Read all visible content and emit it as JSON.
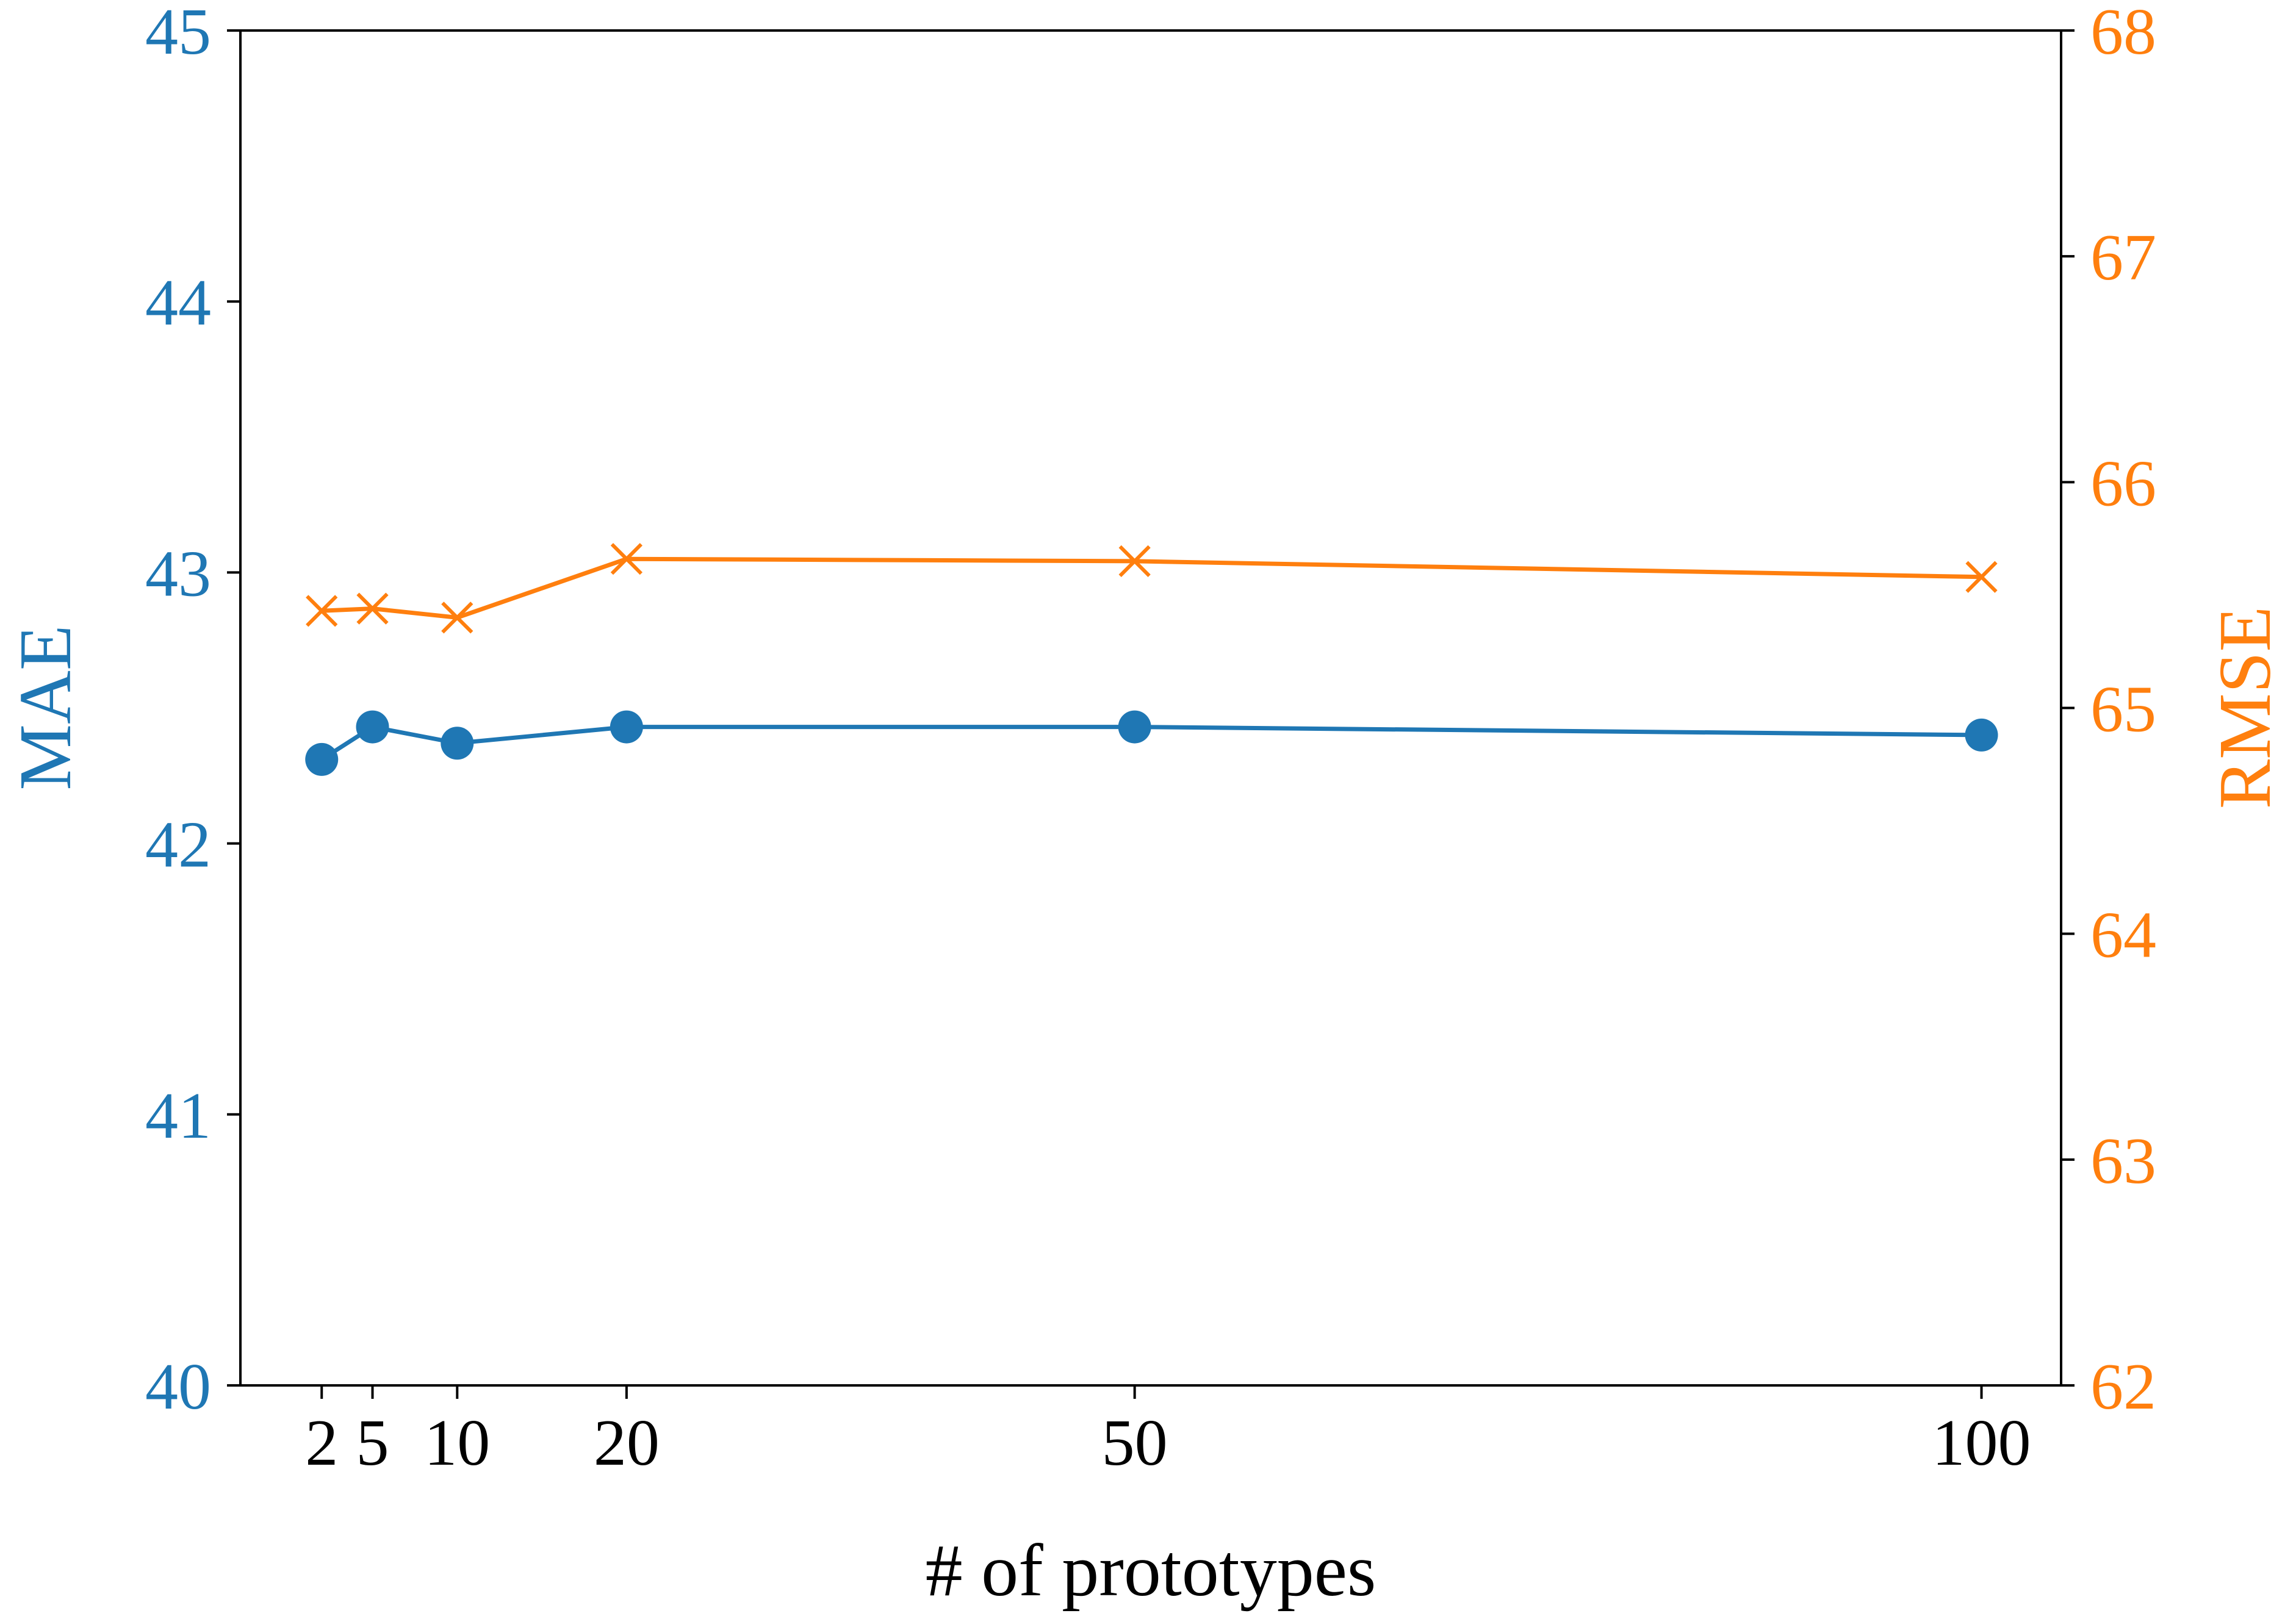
{
  "chart_data": {
    "type": "line",
    "title": "",
    "xlabel": "# of prototypes",
    "x": [
      2,
      5,
      10,
      20,
      50,
      100
    ],
    "xticks": [
      2,
      5,
      10,
      20,
      50,
      100
    ],
    "xtick_labels": [
      "2",
      "5",
      "10",
      "20",
      "50",
      "100"
    ],
    "xlim": [
      -2.8,
      104.7
    ],
    "series": [
      {
        "name": "MAE",
        "axis": "left",
        "marker": "circle",
        "color": "#1f77b4",
        "values": [
          42.31,
          42.43,
          42.37,
          42.43,
          42.43,
          42.4
        ]
      },
      {
        "name": "RMSE",
        "axis": "right",
        "marker": "x",
        "color": "#ff7f0e",
        "values": [
          65.43,
          65.44,
          65.4,
          65.66,
          65.65,
          65.58
        ]
      }
    ],
    "left_axis": {
      "label": "MAE",
      "ylim": [
        40,
        45
      ],
      "ticks": [
        40,
        41,
        42,
        43,
        44,
        45
      ],
      "tick_labels": [
        "40",
        "41",
        "42",
        "43",
        "44",
        "45"
      ],
      "color": "#1f77b4"
    },
    "right_axis": {
      "label": "RMSE",
      "ylim": [
        62,
        68
      ],
      "ticks": [
        62,
        63,
        64,
        65,
        66,
        67,
        68
      ],
      "tick_labels": [
        "62",
        "63",
        "64",
        "65",
        "66",
        "67",
        "68"
      ],
      "color": "#ff7f0e"
    },
    "grid": false,
    "legend": "none"
  }
}
